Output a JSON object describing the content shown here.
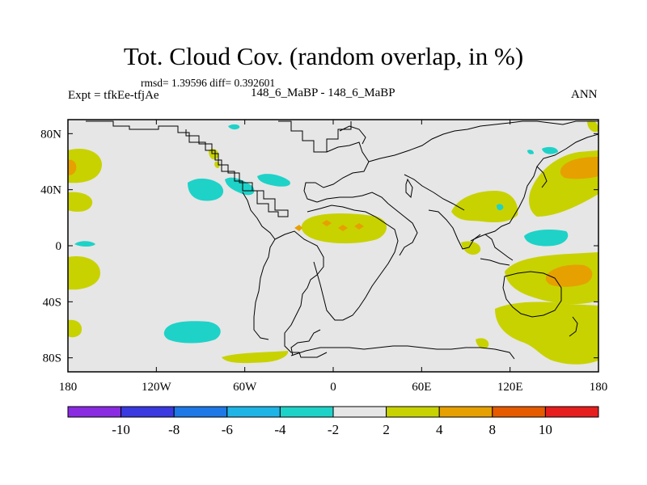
{
  "title": "Tot. Cloud Cov. (random overlap, in %)",
  "stats_line": "rmsd= 1.39596  diff= 0.392601",
  "experiment": "Expt = tfkEe-tfjAe",
  "cases": "148_6_MaBP - 148_6_MaBP",
  "season": "ANN",
  "map": {
    "projection": "cylindrical-equidistant",
    "lon_range": [
      -180,
      180
    ],
    "lat_range": [
      -90,
      90
    ],
    "background_color": "#e6e6e6",
    "x_ticks": [
      {
        "value": -180,
        "label": "180"
      },
      {
        "value": -120,
        "label": "120W"
      },
      {
        "value": -60,
        "label": "60W"
      },
      {
        "value": 0,
        "label": "0"
      },
      {
        "value": 60,
        "label": "60E"
      },
      {
        "value": 120,
        "label": "120E"
      },
      {
        "value": 180,
        "label": "180"
      }
    ],
    "y_ticks": [
      {
        "value": 80,
        "label": "80N"
      },
      {
        "value": 40,
        "label": "40N"
      },
      {
        "value": 0,
        "label": "0"
      },
      {
        "value": -40,
        "label": "40S"
      },
      {
        "value": -80,
        "label": "80S"
      }
    ]
  },
  "colorbar": {
    "colors": [
      "#8a2be2",
      "#3a3ae0",
      "#1e78e6",
      "#1eb4e6",
      "#1ed2c8",
      "#e6e6e6",
      "#c8d200",
      "#e6a000",
      "#e65a00",
      "#e61e1e"
    ],
    "labels": [
      "-10",
      "-8",
      "-6",
      "-4",
      "-2",
      "2",
      "4",
      "8",
      "10"
    ]
  },
  "colors": {
    "yellow_green": "#c8d200",
    "orange": "#e6a000",
    "red_orange": "#e65a00",
    "cyan": "#1ed2c8"
  }
}
